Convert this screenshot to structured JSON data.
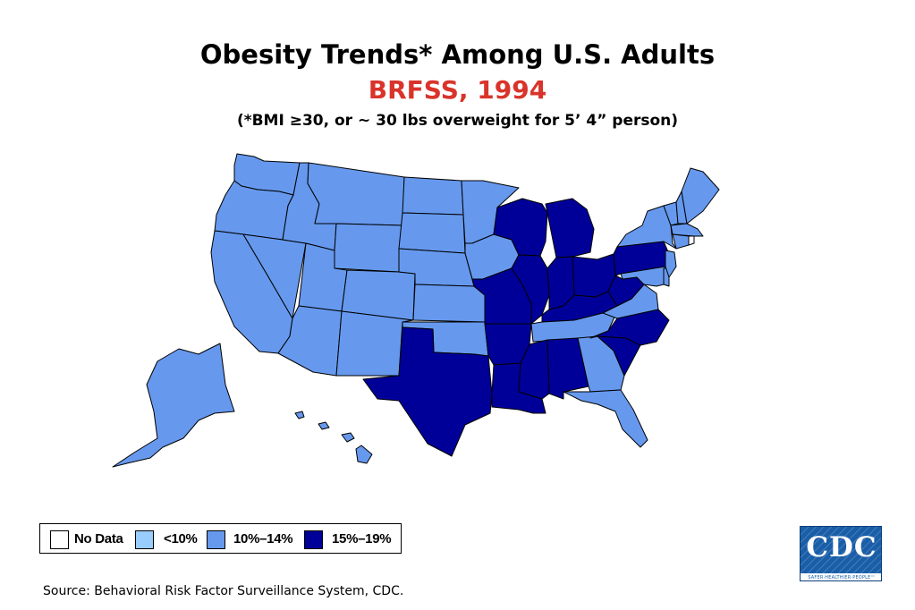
{
  "title": "Obesity Trends* Among U.S. Adults",
  "subtitle": "BRFSS, 1994",
  "note": "(*BMI ≥30, or ~ 30 lbs overweight for 5’ 4” person)",
  "legend": [
    {
      "key": "none",
      "label": "No Data",
      "color": "#ffffff"
    },
    {
      "key": "low",
      "label": "<10%",
      "color": "#99ccff"
    },
    {
      "key": "mid",
      "label": "10%–14%",
      "color": "#6699ee"
    },
    {
      "key": "high",
      "label": "15%–19%",
      "color": "#000099"
    }
  ],
  "states": [
    {
      "name": "Washington",
      "category": "mid"
    },
    {
      "name": "Oregon",
      "category": "mid"
    },
    {
      "name": "California",
      "category": "mid"
    },
    {
      "name": "Nevada",
      "category": "mid"
    },
    {
      "name": "Idaho",
      "category": "mid"
    },
    {
      "name": "Montana",
      "category": "mid"
    },
    {
      "name": "Wyoming",
      "category": "mid"
    },
    {
      "name": "Utah",
      "category": "mid"
    },
    {
      "name": "Arizona",
      "category": "mid"
    },
    {
      "name": "Colorado",
      "category": "mid"
    },
    {
      "name": "New Mexico",
      "category": "mid"
    },
    {
      "name": "North Dakota",
      "category": "mid"
    },
    {
      "name": "South Dakota",
      "category": "mid"
    },
    {
      "name": "Nebraska",
      "category": "mid"
    },
    {
      "name": "Kansas",
      "category": "mid"
    },
    {
      "name": "Oklahoma",
      "category": "mid"
    },
    {
      "name": "Texas",
      "category": "high"
    },
    {
      "name": "Minnesota",
      "category": "mid"
    },
    {
      "name": "Iowa",
      "category": "mid"
    },
    {
      "name": "Missouri",
      "category": "high"
    },
    {
      "name": "Arkansas",
      "category": "high"
    },
    {
      "name": "Louisiana",
      "category": "high"
    },
    {
      "name": "Wisconsin",
      "category": "high"
    },
    {
      "name": "Illinois",
      "category": "high"
    },
    {
      "name": "Michigan",
      "category": "high"
    },
    {
      "name": "Indiana",
      "category": "high"
    },
    {
      "name": "Ohio",
      "category": "high"
    },
    {
      "name": "Kentucky",
      "category": "high"
    },
    {
      "name": "Tennessee",
      "category": "mid"
    },
    {
      "name": "Mississippi",
      "category": "high"
    },
    {
      "name": "Alabama",
      "category": "high"
    },
    {
      "name": "Georgia",
      "category": "mid"
    },
    {
      "name": "Florida",
      "category": "mid"
    },
    {
      "name": "South Carolina",
      "category": "high"
    },
    {
      "name": "North Carolina",
      "category": "high"
    },
    {
      "name": "Virginia",
      "category": "mid"
    },
    {
      "name": "West Virginia",
      "category": "high"
    },
    {
      "name": "Pennsylvania",
      "category": "high"
    },
    {
      "name": "New York",
      "category": "mid"
    },
    {
      "name": "Maryland",
      "category": "mid"
    },
    {
      "name": "Delaware",
      "category": "mid"
    },
    {
      "name": "New Jersey",
      "category": "mid"
    },
    {
      "name": "Vermont",
      "category": "mid"
    },
    {
      "name": "New Hampshire",
      "category": "mid"
    },
    {
      "name": "Maine",
      "category": "mid"
    },
    {
      "name": "Massachusetts",
      "category": "mid"
    },
    {
      "name": "Connecticut",
      "category": "mid"
    },
    {
      "name": "Rhode Island",
      "category": "none"
    },
    {
      "name": "Alaska",
      "category": "mid"
    },
    {
      "name": "Hawaii",
      "category": "mid"
    }
  ],
  "source": "Source: Behavioral Risk Factor Surveillance System, CDC.",
  "logo": {
    "text": "CDC",
    "tagline": "SAFER·HEALTHIER·PEOPLE™"
  }
}
